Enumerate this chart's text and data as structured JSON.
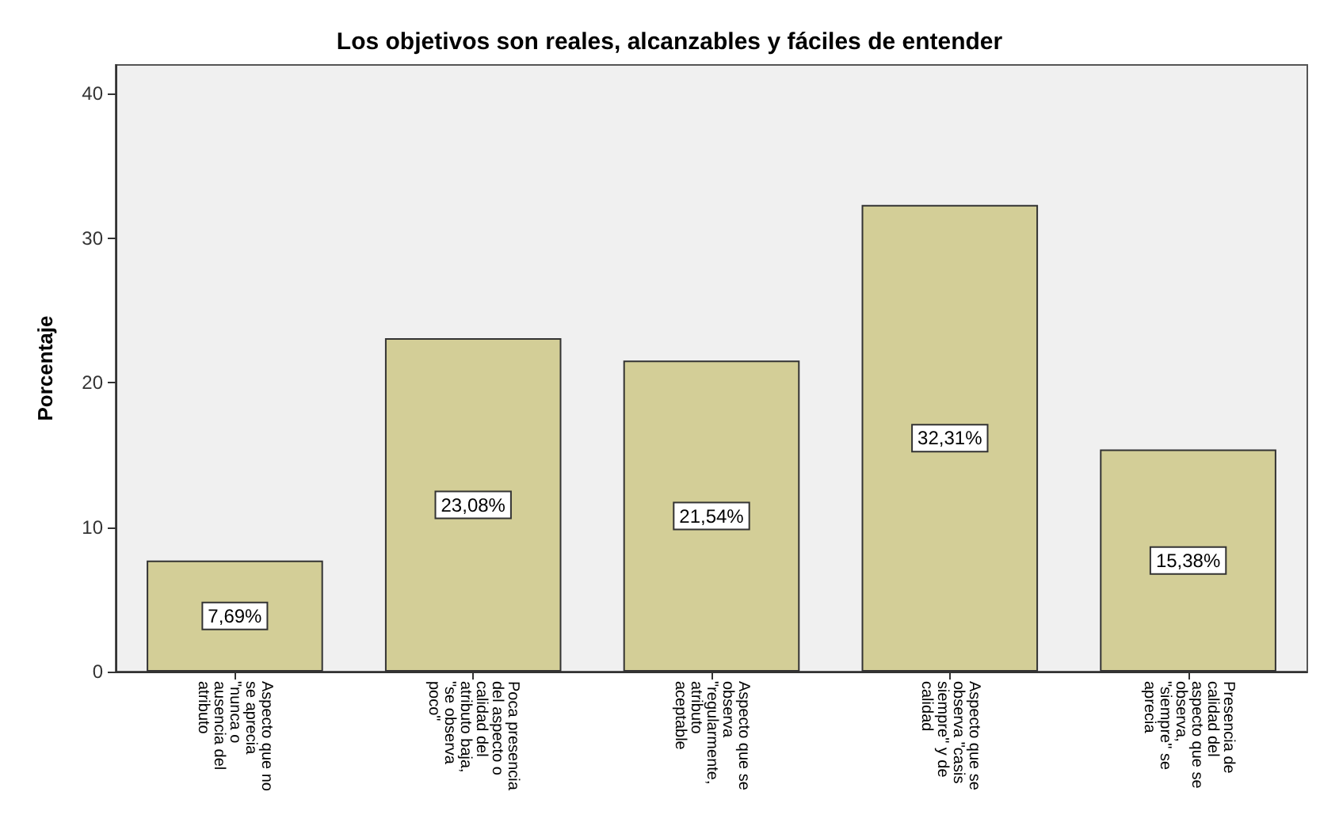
{
  "chart_data": {
    "type": "bar",
    "title": "Los objetivos son reales, alcanzables y fáciles de entender",
    "ylabel": "Porcentaje",
    "categories": [
      "Aspecto que no se aprecia \"nunca o ausencia del atributo",
      "Poca presencia del aspecto o calidad del atributo baja, \"se observa poco\"",
      "Aspecto que se observa \"regularmente, atributo aceptable",
      "Aspecto que se observa \"casis siempre\" y de calidad",
      "Presencia de calidad del aspecto que se observa, \"siempre\" se aprecia"
    ],
    "values": [
      7.69,
      23.08,
      21.54,
      32.31,
      15.38
    ],
    "value_labels": [
      "7,69%",
      "23,08%",
      "21,54%",
      "32,31%",
      "15,38%"
    ],
    "color": "#d3ce97",
    "ylim": [
      0,
      42
    ],
    "yticks": [
      0,
      10,
      20,
      30,
      40
    ],
    "grid": false
  }
}
